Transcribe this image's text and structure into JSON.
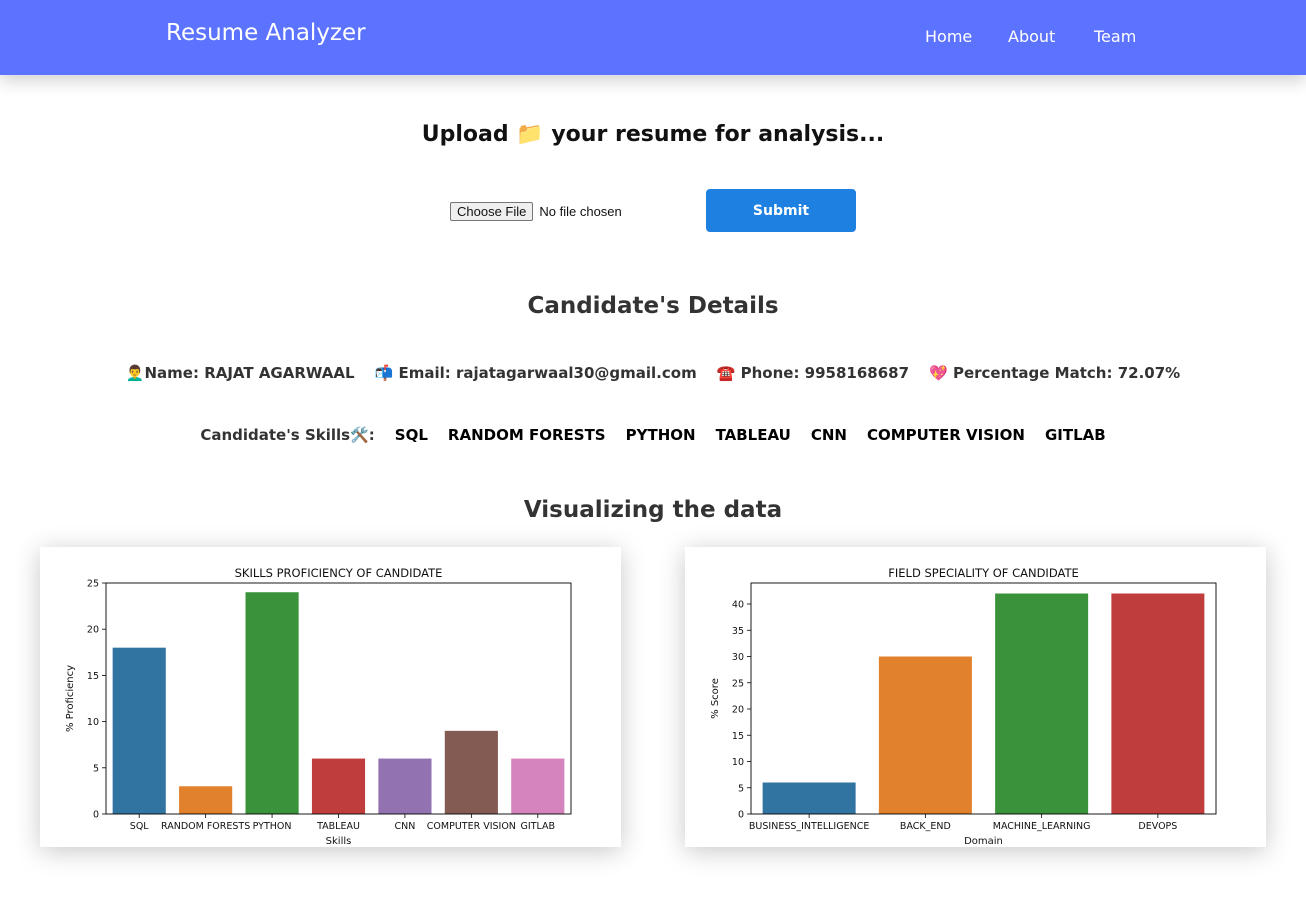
{
  "navbar": {
    "brand": "Resume Analyzer",
    "links": [
      "Home",
      "About",
      "Team"
    ],
    "background": "#5c73ff"
  },
  "upload": {
    "title": "Upload 📁 your resume for analysis...",
    "choose_label": "Choose File",
    "file_status": "No file chosen",
    "submit_label": "Submit"
  },
  "details": {
    "heading": "Candidate's Details",
    "name": "👨‍🦱Name: RAJAT AGARWAAL",
    "email": "📬 Email: rajatagarwaal30@gmail.com",
    "phone": "☎️ Phone: 9958168687",
    "match": "💖 Percentage Match: 72.07%"
  },
  "skills": {
    "label": "Candidate's Skills🛠️:",
    "items": [
      "SQL",
      "RANDOM FORESTS",
      "PYTHON",
      "TABLEAU",
      "CNN",
      "COMPUTER VISION",
      "GITLAB"
    ]
  },
  "visual_heading": "Visualizing the data",
  "chart_data": [
    {
      "type": "bar",
      "title": "SKILLS PROFICIENCY OF CANDIDATE",
      "xlabel": "Skills",
      "ylabel": "% Proficiency",
      "categories": [
        "SQL",
        "RANDOM FORESTS",
        "PYTHON",
        "TABLEAU",
        "CNN",
        "COMPUTER VISION",
        "GITLAB"
      ],
      "values": [
        18,
        3,
        24,
        6,
        6,
        9,
        6
      ],
      "ylim": [
        0,
        25
      ],
      "yticks": [
        0,
        5,
        10,
        15,
        20,
        25
      ],
      "colors": [
        "#3274a1",
        "#e1812c",
        "#3a923a",
        "#c03d3e",
        "#9372b2",
        "#845b53",
        "#d684bd"
      ],
      "grid": false
    },
    {
      "type": "bar",
      "title": "FIELD SPECIALITY OF CANDIDATE",
      "xlabel": "Domain",
      "ylabel": "% Score",
      "categories": [
        "BUSINESS_INTELLIGENCE",
        "BACK_END",
        "MACHINE_LEARNING",
        "DEVOPS"
      ],
      "values": [
        6,
        30,
        42,
        42
      ],
      "ylim": [
        0,
        44
      ],
      "yticks": [
        0,
        5,
        10,
        15,
        20,
        25,
        30,
        35,
        40
      ],
      "colors": [
        "#3274a1",
        "#e1812c",
        "#3a923a",
        "#c03d3e"
      ],
      "grid": false
    }
  ]
}
